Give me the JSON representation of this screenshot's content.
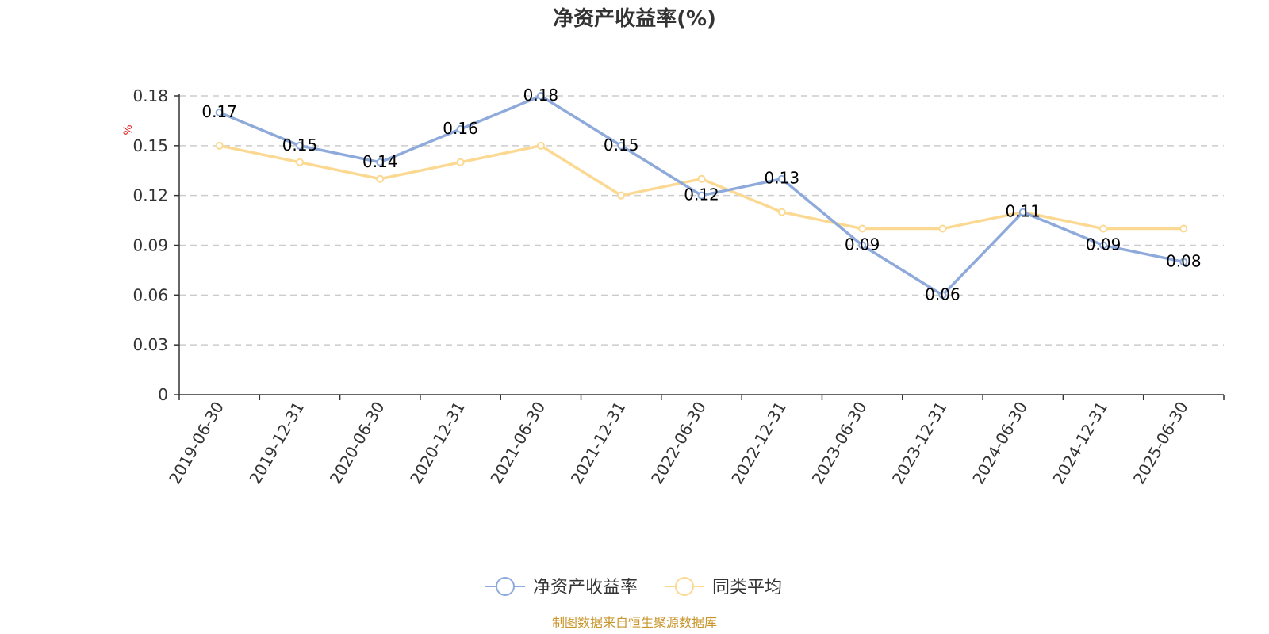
{
  "chart_data": {
    "type": "line",
    "title": "净资产收益率(%)",
    "ylabel": "%",
    "ylim": [
      0,
      0.18
    ],
    "yticks": [
      "0",
      "0.03",
      "0.06",
      "0.09",
      "0.12",
      "0.15",
      "0.18"
    ],
    "grid": true,
    "legend_position": "bottom",
    "categories": [
      "2019-06-30",
      "2019-12-31",
      "2020-06-30",
      "2020-12-31",
      "2021-06-30",
      "2021-12-31",
      "2022-06-30",
      "2022-12-31",
      "2023-06-30",
      "2023-12-31",
      "2024-06-30",
      "2024-12-31",
      "2025-06-30"
    ],
    "series": [
      {
        "name": "净资产收益率",
        "color": "#8eaadb",
        "values": [
          0.17,
          0.15,
          0.14,
          0.16,
          0.18,
          0.15,
          0.12,
          0.13,
          0.09,
          0.06,
          0.11,
          0.09,
          0.08
        ],
        "labels": [
          "0.17",
          "0.15",
          "0.14",
          "0.16",
          "0.18",
          "0.15",
          "0.12",
          "0.13",
          "0.09",
          "0.06",
          "0.11",
          "0.09",
          "0.08"
        ]
      },
      {
        "name": "同类平均",
        "color": "#fcd993",
        "values": [
          0.15,
          0.14,
          0.13,
          0.14,
          0.15,
          0.12,
          0.13,
          0.11,
          0.1,
          0.1,
          0.11,
          0.1,
          0.1
        ]
      }
    ],
    "unit_color": "#e02020"
  },
  "source": {
    "text": "制图数据来自恒生聚源数据库",
    "color": "#c9962e"
  }
}
